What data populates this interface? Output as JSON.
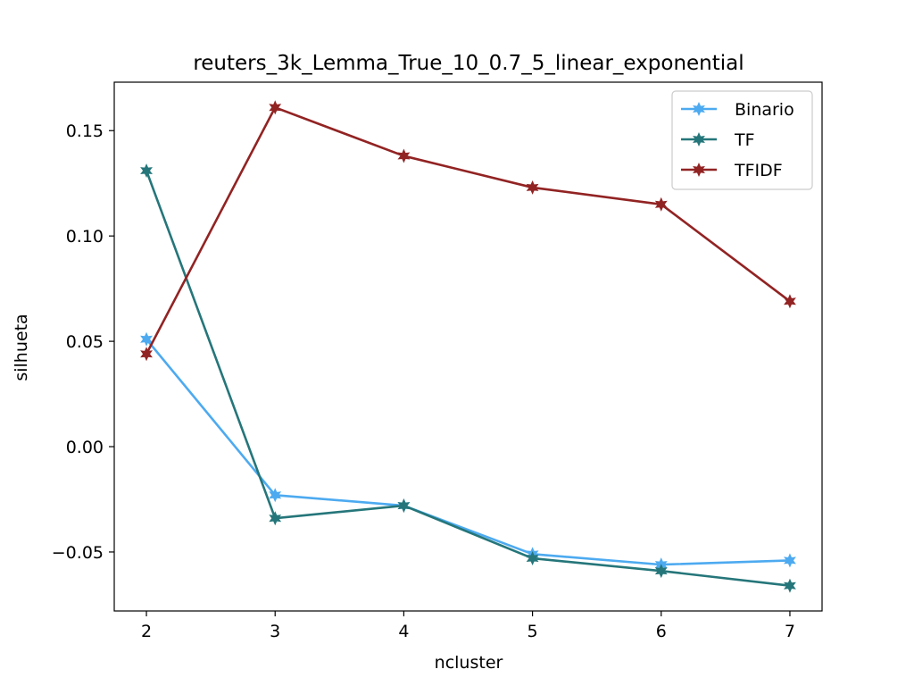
{
  "chart_data": {
    "type": "line",
    "title": "reuters_3k_Lemma_True_10_0.7_5_linear_exponential",
    "xlabel": "ncluster",
    "ylabel": "silhueta",
    "x": [
      2,
      3,
      4,
      5,
      6,
      7
    ],
    "x_ticks": [
      "2",
      "3",
      "4",
      "5",
      "6",
      "7"
    ],
    "y_ticks": [
      {
        "value": -0.05,
        "label": "−0.05"
      },
      {
        "value": 0.0,
        "label": "0.00"
      },
      {
        "value": 0.05,
        "label": "0.05"
      },
      {
        "value": 0.1,
        "label": "0.10"
      },
      {
        "value": 0.15,
        "label": "0.15"
      }
    ],
    "xlim": [
      1.75,
      7.25
    ],
    "ylim": [
      -0.078,
      0.173
    ],
    "grid": false,
    "legend_position": "top-right",
    "series": [
      {
        "name": "Binario",
        "color": "#4daaf0",
        "marker": "star",
        "values": [
          0.051,
          -0.023,
          -0.028,
          -0.051,
          -0.056,
          -0.054
        ]
      },
      {
        "name": "TF",
        "color": "#25767a",
        "marker": "star",
        "values": [
          0.131,
          -0.034,
          -0.028,
          -0.053,
          -0.059,
          -0.066
        ]
      },
      {
        "name": "TFIDF",
        "color": "#922323",
        "marker": "star",
        "values": [
          0.044,
          0.161,
          0.138,
          0.123,
          0.115,
          0.069
        ]
      }
    ]
  }
}
